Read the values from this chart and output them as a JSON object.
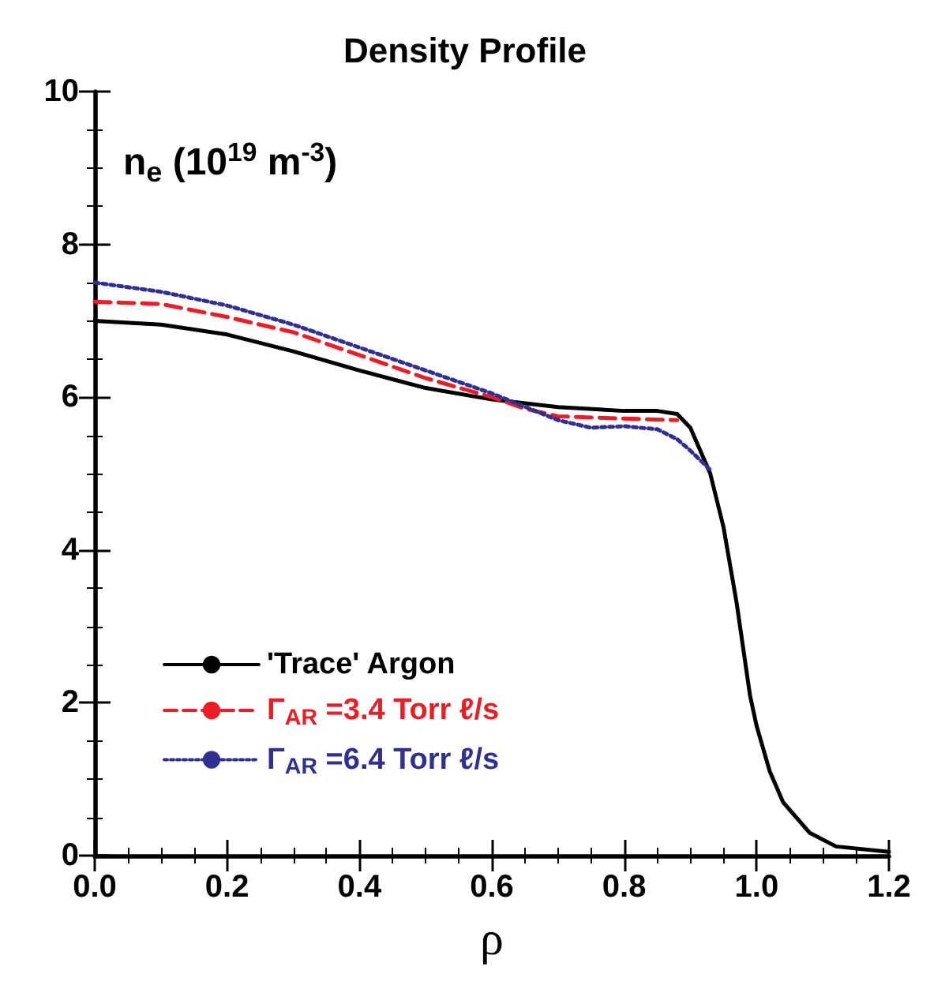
{
  "chart_data": {
    "type": "line",
    "title": "Density Profile",
    "xlabel": "ρ",
    "ylabel": "n$_{e}$ (10$^{19}$ m$^{-3}$)",
    "xlim": [
      0,
      1.2
    ],
    "xticks": [
      {
        "value": 0,
        "label": "0.0"
      },
      0.2,
      0.4,
      0.6,
      0.8,
      {
        "value": 1,
        "label": "1.0"
      },
      {
        "value": 1.2,
        "label": "1.2"
      }
    ],
    "ylim": [
      0,
      10
    ],
    "yticks": [
      0,
      2,
      4,
      6,
      8,
      10
    ],
    "grid": false,
    "legend": "bottom left",
    "marker": "none",
    "series": [
      {
        "name": "'Trace' Argon",
        "color": "#000000",
        "line_style": "solid",
        "x": [
          0,
          0.1,
          0.2,
          0.3,
          0.4,
          0.5,
          0.6,
          0.7,
          0.8,
          0.85,
          0.88,
          0.9,
          0.93,
          0.95,
          0.97,
          0.99,
          1.0,
          1.02,
          1.04,
          1.08,
          1.12,
          1.2
        ],
        "values": [
          7.0,
          6.95,
          6.82,
          6.6,
          6.35,
          6.12,
          5.97,
          5.87,
          5.82,
          5.82,
          5.78,
          5.6,
          5.0,
          4.3,
          3.3,
          2.1,
          1.7,
          1.1,
          0.7,
          0.3,
          0.12,
          0.05
        ]
      },
      {
        "name": "Γ$_{AR}$ =3.4 Torr ℓ/s",
        "color": "#ee1c25",
        "line_style": "dashed",
        "x": [
          0,
          0.1,
          0.2,
          0.3,
          0.4,
          0.5,
          0.6,
          0.65,
          0.7,
          0.8,
          0.88
        ],
        "values": [
          7.25,
          7.22,
          7.05,
          6.85,
          6.55,
          6.25,
          6.0,
          5.85,
          5.75,
          5.72,
          5.7
        ]
      },
      {
        "name": "Γ$_{AR}$ =6.4 Torr ℓ/s",
        "color": "#2e3192",
        "line_style": "dotted",
        "x": [
          0,
          0.1,
          0.2,
          0.3,
          0.4,
          0.5,
          0.6,
          0.7,
          0.75,
          0.8,
          0.85,
          0.88,
          0.9,
          0.93
        ],
        "values": [
          7.5,
          7.38,
          7.2,
          6.95,
          6.65,
          6.35,
          6.05,
          5.7,
          5.6,
          5.62,
          5.58,
          5.45,
          5.3,
          5.05
        ]
      }
    ]
  }
}
